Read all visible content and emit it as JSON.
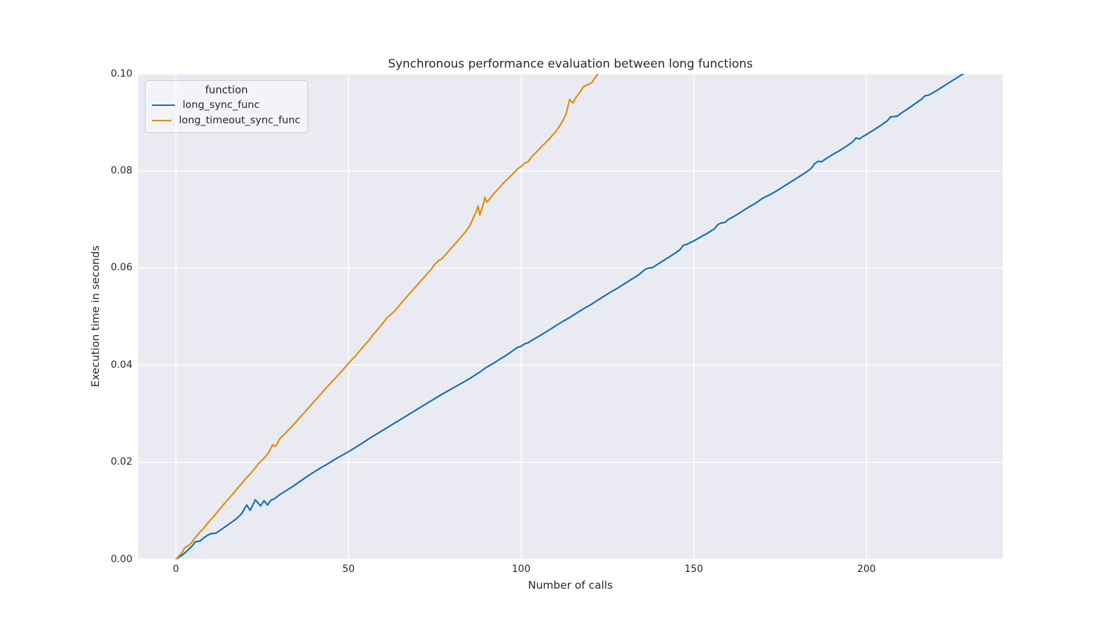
{
  "chart_data": {
    "type": "line",
    "title": "Synchronous performance evaluation between long functions",
    "xlabel": "Number of calls",
    "ylabel": "Execution time in seconds",
    "xlim": [
      -11,
      239.5
    ],
    "ylim": [
      0,
      0.1
    ],
    "grid": true,
    "background_color": "#eaeaf2",
    "gridline_color": "#ffffff",
    "text_color": "#262626",
    "legend": {
      "title": "function",
      "position": "upper left"
    },
    "x_ticks": [
      {
        "v": 0,
        "label": "0"
      },
      {
        "v": 50,
        "label": "50"
      },
      {
        "v": 100,
        "label": "100"
      },
      {
        "v": 150,
        "label": "150"
      },
      {
        "v": 200,
        "label": "200"
      }
    ],
    "y_ticks": [
      {
        "v": 0.0,
        "label": "0.00"
      },
      {
        "v": 0.02,
        "label": "0.02"
      },
      {
        "v": 0.04,
        "label": "0.04"
      },
      {
        "v": 0.06,
        "label": "0.06"
      },
      {
        "v": 0.08,
        "label": "0.08"
      },
      {
        "v": 0.1,
        "label": "0.10"
      }
    ],
    "series": [
      {
        "name": "long_sync_func",
        "color": "#0d72b2",
        "points": [
          [
            0,
            0
          ],
          [
            1,
            0.0005
          ],
          [
            2,
            0.001
          ],
          [
            3,
            0.0016
          ],
          [
            4,
            0.0023
          ],
          [
            5,
            0.003
          ],
          [
            5.5,
            0.0036
          ],
          [
            7,
            0.0038
          ],
          [
            8,
            0.0044
          ],
          [
            9,
            0.0049
          ],
          [
            10,
            0.0053
          ],
          [
            11.5,
            0.0054
          ],
          [
            13,
            0.0061
          ],
          [
            14,
            0.0066
          ],
          [
            15,
            0.0071
          ],
          [
            16,
            0.0076
          ],
          [
            17,
            0.0081
          ],
          [
            18,
            0.0087
          ],
          [
            19,
            0.0094
          ],
          [
            20,
            0.0106
          ],
          [
            20.5,
            0.0112
          ],
          [
            21.5,
            0.0101
          ],
          [
            23,
            0.0123
          ],
          [
            24.5,
            0.011
          ],
          [
            25.5,
            0.0121
          ],
          [
            26.5,
            0.0112
          ],
          [
            27.5,
            0.0122
          ],
          [
            28.5,
            0.0125
          ],
          [
            30,
            0.0133
          ],
          [
            32,
            0.0142
          ],
          [
            34,
            0.0151
          ],
          [
            36,
            0.0161
          ],
          [
            38,
            0.0171
          ],
          [
            40,
            0.018
          ],
          [
            42,
            0.0189
          ],
          [
            44,
            0.0197
          ],
          [
            46,
            0.0206
          ],
          [
            48,
            0.0214
          ],
          [
            50,
            0.0222
          ],
          [
            53,
            0.0235
          ],
          [
            56,
            0.0249
          ],
          [
            59,
            0.0262
          ],
          [
            62,
            0.0275
          ],
          [
            65,
            0.0288
          ],
          [
            68,
            0.0301
          ],
          [
            71,
            0.0314
          ],
          [
            74,
            0.0327
          ],
          [
            77,
            0.034
          ],
          [
            80,
            0.0352
          ],
          [
            83,
            0.0364
          ],
          [
            85,
            0.0372
          ],
          [
            88,
            0.0386
          ],
          [
            90,
            0.0396
          ],
          [
            92,
            0.0404
          ],
          [
            94,
            0.0413
          ],
          [
            96,
            0.0422
          ],
          [
            98,
            0.0432
          ],
          [
            99,
            0.0437
          ],
          [
            100,
            0.0439
          ],
          [
            101,
            0.0444
          ],
          [
            102,
            0.0446
          ],
          [
            103,
            0.0451
          ],
          [
            105,
            0.0459
          ],
          [
            108,
            0.0472
          ],
          [
            110,
            0.0481
          ],
          [
            112,
            0.049
          ],
          [
            114,
            0.0498
          ],
          [
            116,
            0.0507
          ],
          [
            118,
            0.0516
          ],
          [
            120,
            0.0524
          ],
          [
            122,
            0.0533
          ],
          [
            124,
            0.0542
          ],
          [
            126,
            0.0551
          ],
          [
            128,
            0.0559
          ],
          [
            130,
            0.0568
          ],
          [
            132,
            0.0577
          ],
          [
            134,
            0.0586
          ],
          [
            135,
            0.0592
          ],
          [
            136,
            0.0598
          ],
          [
            137,
            0.06
          ],
          [
            138,
            0.0601
          ],
          [
            140,
            0.061
          ],
          [
            142,
            0.0619
          ],
          [
            144,
            0.0628
          ],
          [
            146,
            0.0638
          ],
          [
            147,
            0.0647
          ],
          [
            148,
            0.0649
          ],
          [
            150,
            0.0656
          ],
          [
            152,
            0.0664
          ],
          [
            154,
            0.0672
          ],
          [
            156,
            0.0681
          ],
          [
            157,
            0.069
          ],
          [
            158,
            0.0693
          ],
          [
            159,
            0.0694
          ],
          [
            160,
            0.07
          ],
          [
            162,
            0.0708
          ],
          [
            164,
            0.0717
          ],
          [
            166,
            0.0726
          ],
          [
            168,
            0.0734
          ],
          [
            170,
            0.0744
          ],
          [
            172,
            0.0751
          ],
          [
            174,
            0.0759
          ],
          [
            176,
            0.0768
          ],
          [
            178,
            0.0777
          ],
          [
            180,
            0.0786
          ],
          [
            182,
            0.0795
          ],
          [
            184,
            0.0805
          ],
          [
            185,
            0.0815
          ],
          [
            186,
            0.082
          ],
          [
            187,
            0.0819
          ],
          [
            188,
            0.0824
          ],
          [
            190,
            0.0833
          ],
          [
            192,
            0.0841
          ],
          [
            194,
            0.085
          ],
          [
            196,
            0.086
          ],
          [
            197,
            0.0868
          ],
          [
            198,
            0.0866
          ],
          [
            199,
            0.0871
          ],
          [
            200,
            0.0875
          ],
          [
            202,
            0.0884
          ],
          [
            204,
            0.0893
          ],
          [
            206,
            0.0903
          ],
          [
            207,
            0.0911
          ],
          [
            208,
            0.0912
          ],
          [
            209,
            0.0913
          ],
          [
            210,
            0.0919
          ],
          [
            212,
            0.0928
          ],
          [
            214,
            0.0938
          ],
          [
            216,
            0.0948
          ],
          [
            217,
            0.0955
          ],
          [
            218,
            0.0956
          ],
          [
            220,
            0.0964
          ],
          [
            222,
            0.0973
          ],
          [
            224,
            0.0982
          ],
          [
            226,
            0.0991
          ],
          [
            228,
            0.1
          ]
        ]
      },
      {
        "name": "long_timeout_sync_func",
        "color": "#de8f05",
        "points": [
          [
            0,
            0
          ],
          [
            1,
            0.0008
          ],
          [
            2,
            0.0016
          ],
          [
            2.5,
            0.0024
          ],
          [
            3.5,
            0.0028
          ],
          [
            4.5,
            0.0034
          ],
          [
            5,
            0.004
          ],
          [
            6,
            0.0048
          ],
          [
            7,
            0.0057
          ],
          [
            8,
            0.0064
          ],
          [
            9,
            0.0073
          ],
          [
            10,
            0.0081
          ],
          [
            11,
            0.0089
          ],
          [
            12,
            0.0098
          ],
          [
            13,
            0.0106
          ],
          [
            14,
            0.0115
          ],
          [
            15,
            0.0123
          ],
          [
            16,
            0.0131
          ],
          [
            17,
            0.0139
          ],
          [
            18,
            0.0148
          ],
          [
            19,
            0.0156
          ],
          [
            20,
            0.0165
          ],
          [
            21,
            0.0172
          ],
          [
            22,
            0.018
          ],
          [
            23,
            0.0189
          ],
          [
            24,
            0.0198
          ],
          [
            25,
            0.0205
          ],
          [
            26,
            0.0212
          ],
          [
            27,
            0.0222
          ],
          [
            28,
            0.0236
          ],
          [
            28.7,
            0.0233
          ],
          [
            29.3,
            0.0237
          ],
          [
            30,
            0.0248
          ],
          [
            31,
            0.0255
          ],
          [
            32,
            0.0262
          ],
          [
            34,
            0.0277
          ],
          [
            36,
            0.0293
          ],
          [
            38,
            0.0309
          ],
          [
            40,
            0.0325
          ],
          [
            42,
            0.0341
          ],
          [
            44,
            0.0357
          ],
          [
            46,
            0.0372
          ],
          [
            48,
            0.0388
          ],
          [
            50,
            0.0404
          ],
          [
            52,
            0.0419
          ],
          [
            54,
            0.0436
          ],
          [
            56,
            0.0452
          ],
          [
            57,
            0.0462
          ],
          [
            58,
            0.047
          ],
          [
            60,
            0.0487
          ],
          [
            61,
            0.0497
          ],
          [
            62,
            0.0503
          ],
          [
            63,
            0.0509
          ],
          [
            64,
            0.0517
          ],
          [
            65,
            0.0526
          ],
          [
            66,
            0.0534
          ],
          [
            68,
            0.055
          ],
          [
            70,
            0.0566
          ],
          [
            72,
            0.0582
          ],
          [
            74,
            0.0598
          ],
          [
            75,
            0.0608
          ],
          [
            76,
            0.0615
          ],
          [
            77,
            0.0619
          ],
          [
            78,
            0.0627
          ],
          [
            80,
            0.0643
          ],
          [
            82,
            0.0659
          ],
          [
            84,
            0.0676
          ],
          [
            85,
            0.0686
          ],
          [
            86,
            0.0701
          ],
          [
            87,
            0.0717
          ],
          [
            87.5,
            0.0728
          ],
          [
            88,
            0.0709
          ],
          [
            89,
            0.0731
          ],
          [
            89.5,
            0.0746
          ],
          [
            90,
            0.0736
          ],
          [
            91,
            0.0743
          ],
          [
            92,
            0.0753
          ],
          [
            93,
            0.076
          ],
          [
            94,
            0.0768
          ],
          [
            95,
            0.0776
          ],
          [
            96,
            0.0783
          ],
          [
            97,
            0.079
          ],
          [
            98,
            0.0797
          ],
          [
            99,
            0.0805
          ],
          [
            100,
            0.0809
          ],
          [
            101,
            0.0816
          ],
          [
            102,
            0.0819
          ],
          [
            103,
            0.0829
          ],
          [
            104,
            0.0836
          ],
          [
            105,
            0.0843
          ],
          [
            106,
            0.0851
          ],
          [
            107,
            0.0858
          ],
          [
            108,
            0.0865
          ],
          [
            109,
            0.0873
          ],
          [
            110,
            0.0881
          ],
          [
            111,
            0.0891
          ],
          [
            112,
            0.0903
          ],
          [
            113,
            0.0917
          ],
          [
            114,
            0.0947
          ],
          [
            115,
            0.094
          ],
          [
            116,
            0.0953
          ],
          [
            117,
            0.0962
          ],
          [
            118,
            0.0973
          ],
          [
            119,
            0.0977
          ],
          [
            120,
            0.098
          ],
          [
            120.5,
            0.0982
          ],
          [
            121,
            0.0988
          ],
          [
            122,
            0.0998
          ],
          [
            122.8,
            0.1008
          ]
        ]
      }
    ]
  }
}
